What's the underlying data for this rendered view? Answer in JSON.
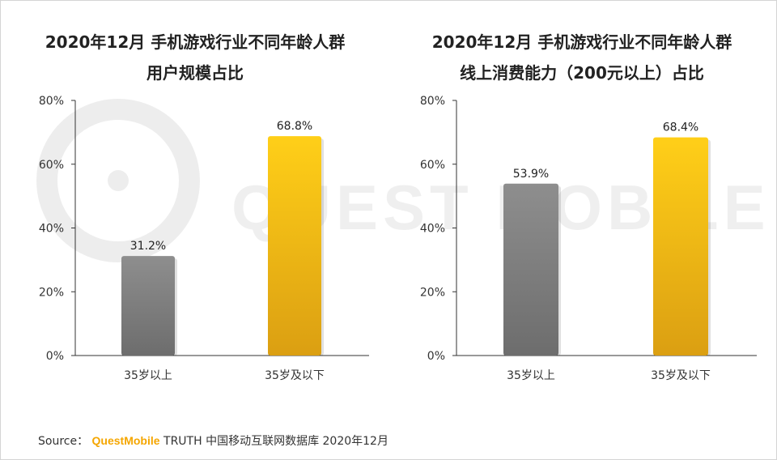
{
  "chart_data": [
    {
      "type": "bar",
      "title_lines": [
        "2020年12月 手机游戏行业不同年龄人群",
        "用户规模占比"
      ],
      "categories": [
        "35岁以上",
        "35岁及以下"
      ],
      "values": [
        31.2,
        68.8
      ],
      "value_labels": [
        "31.2%",
        "68.8%"
      ],
      "bar_colors": [
        "#7f7f7f",
        "#ffb915"
      ],
      "ylim": [
        0,
        80
      ],
      "yticks": [
        "0%",
        "20%",
        "40%",
        "60%",
        "80%"
      ],
      "grid": false,
      "xlabel": "",
      "ylabel": ""
    },
    {
      "type": "bar",
      "title_lines": [
        "2020年12月 手机游戏行业不同年龄人群",
        "线上消费能力（200元以上）占比"
      ],
      "categories": [
        "35岁以上",
        "35岁及以下"
      ],
      "values": [
        53.9,
        68.4
      ],
      "value_labels": [
        "53.9%",
        "68.4%"
      ],
      "bar_colors": [
        "#7f7f7f",
        "#ffb915"
      ],
      "ylim": [
        0,
        80
      ],
      "yticks": [
        "0%",
        "20%",
        "40%",
        "60%",
        "80%"
      ],
      "grid": false,
      "xlabel": "",
      "ylabel": ""
    }
  ],
  "watermark": "QUEST MOBILE",
  "source": {
    "prefix": "Source：",
    "brand": "QuestMobile",
    "rest": "TRUTH 中国移动互联网数据库 2020年12月"
  }
}
